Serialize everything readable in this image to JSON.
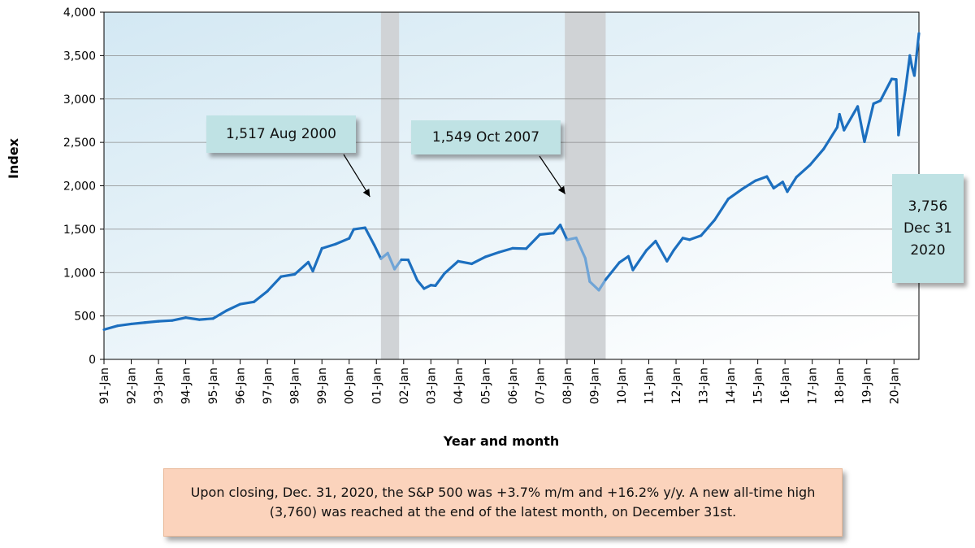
{
  "chart_data": {
    "type": "line",
    "title": "",
    "xlabel": "Year and month",
    "ylabel": "Index",
    "ylim": [
      0,
      4000
    ],
    "yticks": [
      "0",
      "500",
      "1,000",
      "1,500",
      "2,000",
      "2,500",
      "3,000",
      "3,500",
      "4,000"
    ],
    "ytick_values": [
      0,
      500,
      1000,
      1500,
      2000,
      2500,
      3000,
      3500,
      4000
    ],
    "xticks": [
      "91-Jan",
      "92-Jan",
      "93-Jan",
      "94-Jan",
      "95-Jan",
      "96-Jan",
      "97-Jan",
      "98-Jan",
      "99-Jan",
      "00-Jan",
      "01-Jan",
      "02-Jan",
      "03-Jan",
      "04-Jan",
      "05-Jan",
      "06-Jan",
      "07-Jan",
      "08-Jan",
      "09-Jan",
      "10-Jan",
      "11-Jan",
      "12-Jan",
      "13-Jan",
      "14-Jan",
      "15-Jan",
      "16-Jan",
      "17-Jan",
      "18-Jan",
      "19-Jan",
      "20-Jan"
    ],
    "grid": true,
    "recession_shading": [
      {
        "start": "2001-03",
        "end": "2001-11"
      },
      {
        "start": "2007-12",
        "end": "2009-06"
      }
    ],
    "series": [
      {
        "color": "#1c6fbf",
        "recession_color": "#6fa4d6",
        "x": [
          "1991-01",
          "1991-07",
          "1992-01",
          "1992-07",
          "1993-01",
          "1993-07",
          "1994-01",
          "1994-07",
          "1995-01",
          "1995-07",
          "1996-01",
          "1996-07",
          "1997-01",
          "1997-07",
          "1998-01",
          "1998-07",
          "1998-09",
          "1999-01",
          "1999-07",
          "2000-01",
          "2000-03",
          "2000-08",
          "2000-12",
          "2001-03",
          "2001-06",
          "2001-09",
          "2001-12",
          "2002-03",
          "2002-07",
          "2002-10",
          "2003-01",
          "2003-03",
          "2003-07",
          "2004-01",
          "2004-07",
          "2005-01",
          "2005-07",
          "2006-01",
          "2006-07",
          "2007-01",
          "2007-07",
          "2007-10",
          "2008-01",
          "2008-05",
          "2008-09",
          "2008-11",
          "2009-03",
          "2009-06",
          "2009-12",
          "2010-04",
          "2010-06",
          "2010-12",
          "2011-04",
          "2011-09",
          "2011-12",
          "2012-04",
          "2012-07",
          "2012-12",
          "2013-06",
          "2013-12",
          "2014-06",
          "2014-12",
          "2015-05",
          "2015-08",
          "2015-12",
          "2016-02",
          "2016-06",
          "2016-12",
          "2017-06",
          "2017-12",
          "2018-01",
          "2018-03",
          "2018-09",
          "2018-12",
          "2019-04",
          "2019-07",
          "2019-12",
          "2020-02",
          "2020-03",
          "2020-06",
          "2020-08",
          "2020-09",
          "2020-10",
          "2020-12"
        ],
        "y": [
          343,
          387,
          408,
          424,
          439,
          448,
          481,
          458,
          470,
          562,
          636,
          662,
          786,
          954,
          980,
          1120,
          1017,
          1279,
          1328,
          1394,
          1498,
          1517,
          1320,
          1160,
          1224,
          1040,
          1148,
          1147,
          911,
          815,
          855,
          849,
          990,
          1131,
          1101,
          1181,
          1234,
          1280,
          1276,
          1438,
          1455,
          1549,
          1378,
          1400,
          1166,
          896,
          797,
          919,
          1115,
          1187,
          1030,
          1258,
          1363,
          1131,
          1258,
          1398,
          1379,
          1426,
          1606,
          1848,
          1960,
          2059,
          2107,
          1972,
          2044,
          1932,
          2099,
          2239,
          2423,
          2674,
          2824,
          2641,
          2914,
          2507,
          2946,
          2980,
          3231,
          3225,
          2585,
          3100,
          3500,
          3363,
          3270,
          3756
        ]
      }
    ],
    "annotations": [
      {
        "text": "1,517 Aug 2000",
        "x": "2000-08",
        "y": 1517
      },
      {
        "text": "1,549 Oct 2007",
        "x": "2007-10",
        "y": 1549
      },
      {
        "text": "3,756\nDec 31\n2020",
        "x": "2020-12",
        "y": 3756
      }
    ]
  },
  "note": "Upon closing, Dec. 31, 2020, the S&P 500 was +3.7% m/m and +16.2% y/y. A new all-time high (3,760) was reached at the end of the latest month, on December 31st."
}
